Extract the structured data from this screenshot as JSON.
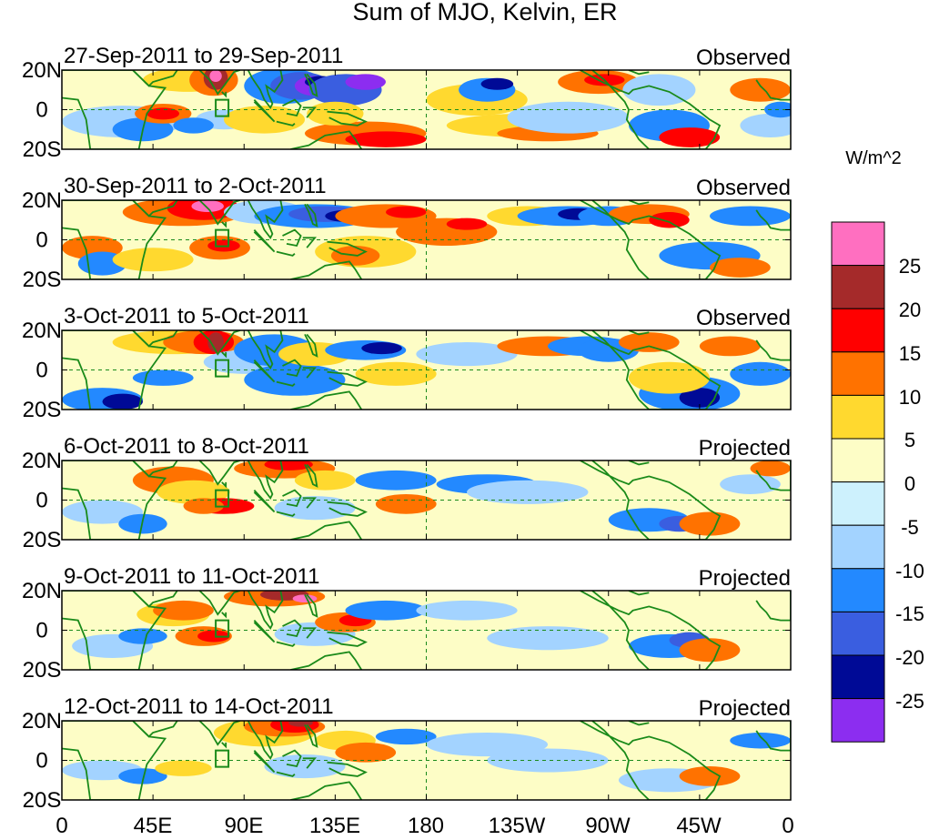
{
  "title": "Sum of MJO, Kelvin, ER",
  "units": "W/m^2",
  "lat_labels": [
    "20N",
    "0",
    "20S"
  ],
  "lon_labels": [
    "0",
    "45E",
    "90E",
    "135E",
    "180",
    "135W",
    "90W",
    "45W",
    "0"
  ],
  "colorbar": {
    "levels": [
      "25",
      "20",
      "15",
      "10",
      "5",
      "0",
      "-5",
      "-10",
      "-15",
      "-20",
      "-25"
    ],
    "colors": [
      "#ff6fc0",
      "#a52a2a",
      "#ff0000",
      "#ff7200",
      "#ffd92f",
      "#fdfdc6",
      "#cdf1fd",
      "#a3d3ff",
      "#2389ff",
      "#3a5ee0",
      "#000a96",
      "#8c2df0"
    ]
  },
  "panels": [
    {
      "dates": "27-Sep-2011 to 29-Sep-2011",
      "kind": "Observed"
    },
    {
      "dates": "30-Sep-2011 to 2-Oct-2011",
      "kind": "Observed"
    },
    {
      "dates": "3-Oct-2011 to 5-Oct-2011",
      "kind": "Observed"
    },
    {
      "dates": "6-Oct-2011 to 8-Oct-2011",
      "kind": "Projected"
    },
    {
      "dates": "9-Oct-2011 to 11-Oct-2011",
      "kind": "Projected"
    },
    {
      "dates": "12-Oct-2011 to 14-Oct-2011",
      "kind": "Projected"
    }
  ],
  "map_layers": {
    "coastline_color": "#1a8a1a",
    "equator_line": "dashed",
    "dateline_line": "dashed",
    "box_marker": "green outline box near 80E on the equator"
  }
}
